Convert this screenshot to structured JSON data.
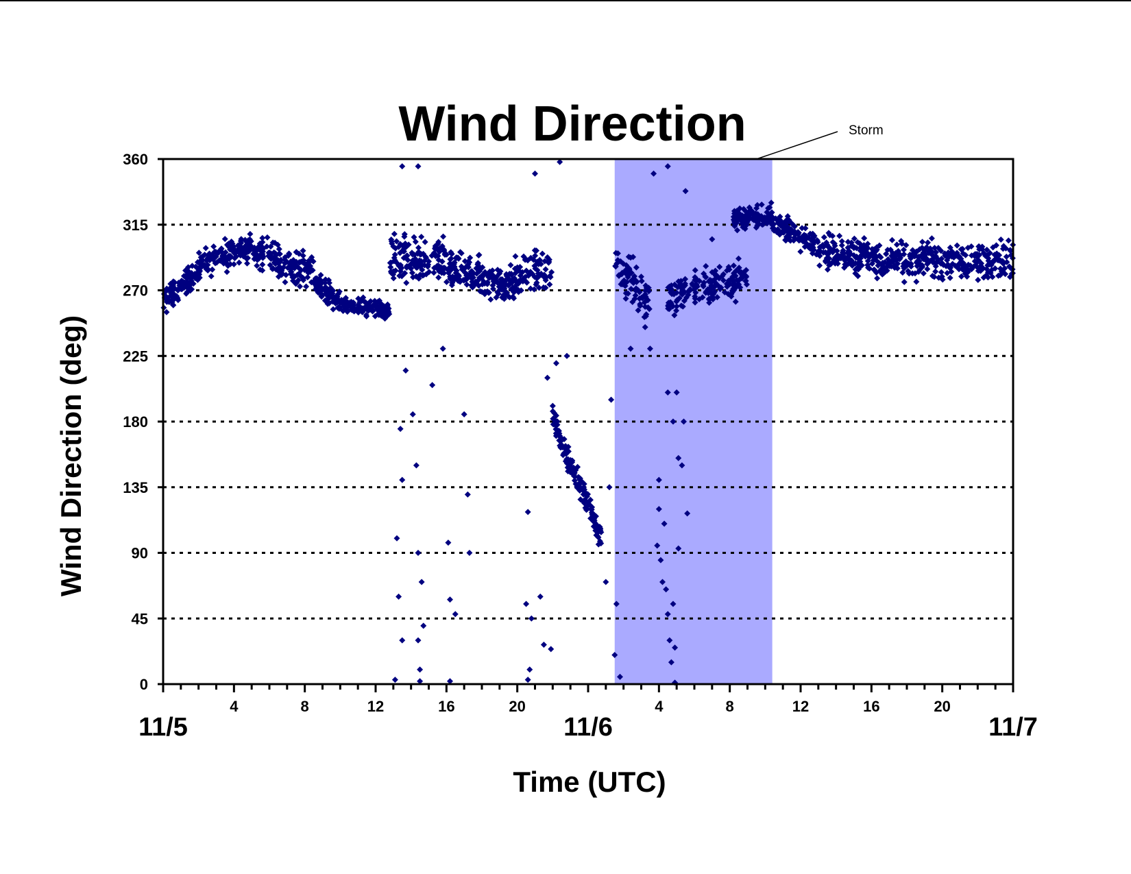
{
  "chart_data": {
    "type": "scatter",
    "title": "Wind Direction",
    "xlabel": "Time (UTC)",
    "ylabel": "Wind Direction (deg)",
    "ylim": [
      0,
      360
    ],
    "yticks": [
      0,
      45,
      90,
      135,
      180,
      225,
      270,
      315,
      360
    ],
    "x_unit": "hours since 11/5 00 UTC",
    "xlim": [
      0,
      48
    ],
    "x_hour_ticks": [
      {
        "x": 4,
        "label": "4"
      },
      {
        "x": 8,
        "label": "8"
      },
      {
        "x": 12,
        "label": "12"
      },
      {
        "x": 16,
        "label": "16"
      },
      {
        "x": 20,
        "label": "20"
      },
      {
        "x": 28,
        "label": "4"
      },
      {
        "x": 32,
        "label": "8"
      },
      {
        "x": 36,
        "label": "12"
      },
      {
        "x": 40,
        "label": "16"
      },
      {
        "x": 44,
        "label": "20"
      }
    ],
    "x_date_ticks": [
      {
        "x": 0,
        "label": "11/5"
      },
      {
        "x": 24,
        "label": "11/6"
      },
      {
        "x": 48,
        "label": "11/7"
      }
    ],
    "grid": "horizontal dotted",
    "annotation": {
      "label": "Storm",
      "x_start": 25.5,
      "x_end": 34.4,
      "color": "#aaaaff"
    },
    "series": [
      {
        "name": "",
        "color": "#000080",
        "marker": "diamond",
        "segments": [
          {
            "t0": 0,
            "t1": 2,
            "d0": 262,
            "d1": 283,
            "spread": 12,
            "n": 120
          },
          {
            "t0": 2,
            "t1": 5,
            "d0": 288,
            "d1": 300,
            "spread": 14,
            "n": 140
          },
          {
            "t0": 5,
            "t1": 8.5,
            "d0": 298,
            "d1": 282,
            "spread": 16,
            "n": 160
          },
          {
            "t0": 8.5,
            "t1": 10,
            "d0": 275,
            "d1": 262,
            "spread": 12,
            "n": 80
          },
          {
            "t0": 10,
            "t1": 12.8,
            "d0": 260,
            "d1": 256,
            "spread": 8,
            "n": 130
          },
          {
            "t0": 12.8,
            "t1": 16,
            "d0": 290,
            "d1": 290,
            "spread": 25,
            "n": 140
          },
          {
            "t0": 16,
            "t1": 19.5,
            "d0": 286,
            "d1": 272,
            "spread": 18,
            "n": 170
          },
          {
            "t0": 19.5,
            "t1": 22,
            "d0": 278,
            "d1": 285,
            "spread": 20,
            "n": 100
          },
          {
            "t0": 22,
            "t1": 23,
            "d0": 185,
            "d1": 150,
            "spread": 14,
            "n": 60
          },
          {
            "t0": 23,
            "t1": 24.8,
            "d0": 150,
            "d1": 100,
            "spread": 14,
            "n": 90
          },
          {
            "t0": 25.5,
            "t1": 27.5,
            "d0": 290,
            "d1": 260,
            "spread": 25,
            "n": 80
          },
          {
            "t0": 28.5,
            "t1": 33,
            "d0": 265,
            "d1": 280,
            "spread": 18,
            "n": 180
          },
          {
            "t0": 32.2,
            "t1": 34.4,
            "d0": 318,
            "d1": 322,
            "spread": 10,
            "n": 110
          },
          {
            "t0": 34.4,
            "t1": 37,
            "d0": 318,
            "d1": 300,
            "spread": 12,
            "n": 110
          },
          {
            "t0": 37,
            "t1": 41,
            "d0": 298,
            "d1": 290,
            "spread": 18,
            "n": 180
          },
          {
            "t0": 41,
            "t1": 48,
            "d0": 290,
            "d1": 290,
            "spread": 18,
            "n": 280
          }
        ],
        "scatter_points": [
          [
            13.4,
            175
          ],
          [
            13.5,
            140
          ],
          [
            13.2,
            100
          ],
          [
            13.3,
            60
          ],
          [
            13.5,
            30
          ],
          [
            13.1,
            3
          ],
          [
            13.7,
            215
          ],
          [
            14.1,
            185
          ],
          [
            14.3,
            150
          ],
          [
            14.4,
            90
          ],
          [
            14.6,
            70
          ],
          [
            14.4,
            30
          ],
          [
            14.5,
            10
          ],
          [
            14.7,
            40
          ],
          [
            14.5,
            2
          ],
          [
            15.2,
            205
          ],
          [
            15.8,
            230
          ],
          [
            16.1,
            97
          ],
          [
            16.2,
            58
          ],
          [
            16.5,
            48
          ],
          [
            16.2,
            2
          ],
          [
            17.0,
            185
          ],
          [
            17.2,
            130
          ],
          [
            17.3,
            90
          ],
          [
            20.6,
            118
          ],
          [
            20.5,
            55
          ],
          [
            20.8,
            45
          ],
          [
            20.7,
            10
          ],
          [
            20.6,
            3
          ],
          [
            21.3,
            60
          ],
          [
            21.5,
            27
          ],
          [
            21.9,
            24
          ],
          [
            21.7,
            210
          ],
          [
            22.2,
            220
          ],
          [
            22.8,
            225
          ],
          [
            13.5,
            355
          ],
          [
            14.4,
            355
          ],
          [
            21.0,
            350
          ],
          [
            22.4,
            358
          ],
          [
            13.0,
            300
          ],
          [
            25.2,
            135
          ],
          [
            25.0,
            70
          ],
          [
            25.3,
            195
          ],
          [
            25.5,
            20
          ],
          [
            25.6,
            55
          ],
          [
            25.8,
            5
          ],
          [
            26.4,
            230
          ],
          [
            27.5,
            230
          ],
          [
            28.0,
            140
          ],
          [
            28.0,
            120
          ],
          [
            27.9,
            95
          ],
          [
            28.1,
            85
          ],
          [
            28.3,
            110
          ],
          [
            28.2,
            70
          ],
          [
            28.4,
            65
          ],
          [
            28.5,
            48
          ],
          [
            28.6,
            30
          ],
          [
            28.7,
            15
          ],
          [
            28.9,
            25
          ],
          [
            28.8,
            55
          ],
          [
            28.9,
            1
          ],
          [
            29.1,
            155
          ],
          [
            29.1,
            93
          ],
          [
            29.6,
            117
          ],
          [
            28.5,
            200
          ],
          [
            29.0,
            200
          ],
          [
            28.8,
            180
          ],
          [
            29.3,
            150
          ],
          [
            29.4,
            180
          ],
          [
            27.7,
            350
          ],
          [
            28.5,
            355
          ],
          [
            29.5,
            338
          ],
          [
            31.0,
            305
          ]
        ]
      }
    ]
  }
}
